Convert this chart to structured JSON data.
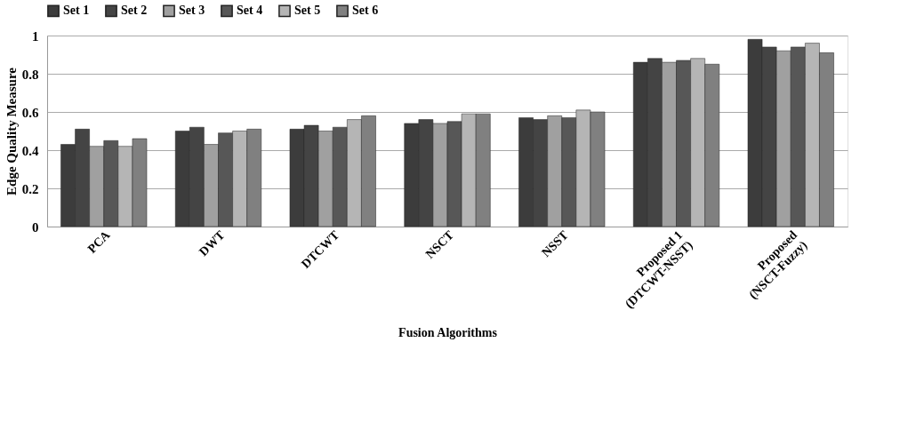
{
  "chart_data": {
    "type": "bar",
    "xlabel": "Fusion Algorithms",
    "ylabel": "Edge Quality Measure",
    "categories": [
      "PCA",
      "DWT",
      "DTCWT",
      "NSCT",
      "NSST",
      "Proposed 1\n(DTCWT-NSST)",
      "Proposed\n(NSCT-Fuzzy)"
    ],
    "series": [
      {
        "name": "Set 1",
        "color": "#3c3c3c",
        "values": [
          0.43,
          0.5,
          0.51,
          0.54,
          0.57,
          0.86,
          0.98
        ]
      },
      {
        "name": "Set 2",
        "color": "#444444",
        "values": [
          0.51,
          0.52,
          0.53,
          0.56,
          0.56,
          0.88,
          0.94
        ]
      },
      {
        "name": "Set 3",
        "color": "#a0a0a0",
        "values": [
          0.42,
          0.43,
          0.5,
          0.54,
          0.58,
          0.86,
          0.92
        ]
      },
      {
        "name": "Set 4",
        "color": "#575757",
        "values": [
          0.45,
          0.49,
          0.52,
          0.55,
          0.57,
          0.87,
          0.94
        ]
      },
      {
        "name": "Set 5",
        "color": "#b5b5b5",
        "values": [
          0.42,
          0.5,
          0.56,
          0.59,
          0.61,
          0.88,
          0.96
        ]
      },
      {
        "name": "Set 6",
        "color": "#808080",
        "values": [
          0.46,
          0.51,
          0.58,
          0.59,
          0.6,
          0.85,
          0.91
        ]
      }
    ],
    "ylim": [
      0,
      1
    ],
    "yticks": [
      0,
      0.2,
      0.4,
      0.6,
      0.8,
      1
    ],
    "grid": "y",
    "legend": "top"
  }
}
